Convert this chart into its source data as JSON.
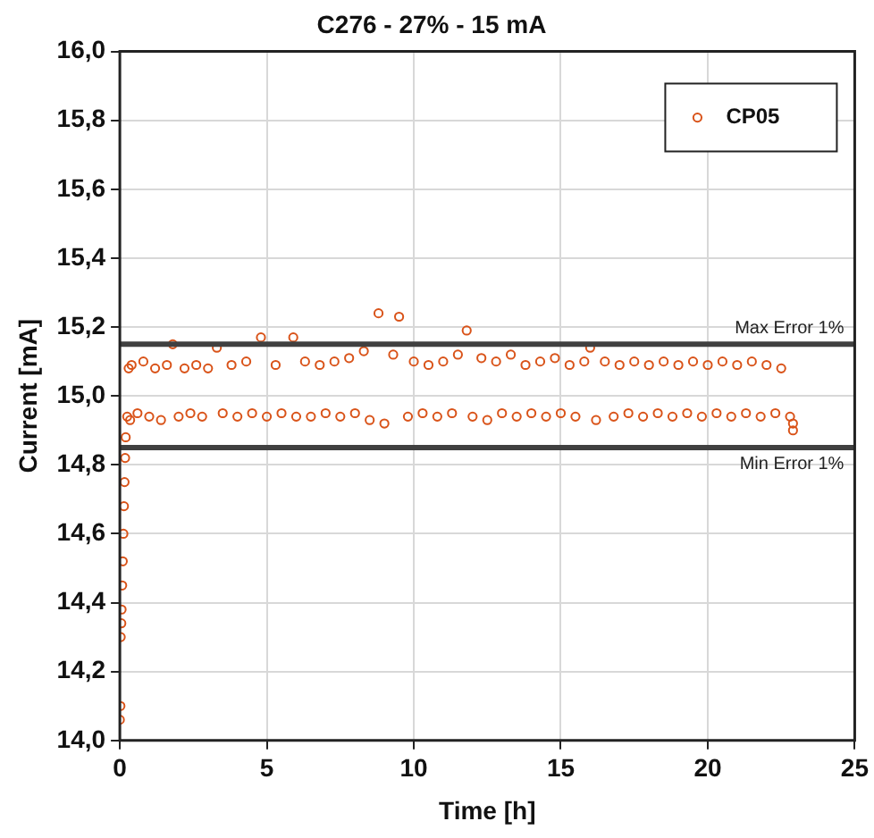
{
  "chart_data": {
    "type": "scatter",
    "title": "C276 - 27% - 15 mA",
    "xlabel": "Time [h]",
    "ylabel": "Current [mA]",
    "xlim": [
      0,
      25
    ],
    "xticks": [
      0,
      5,
      10,
      15,
      20,
      25
    ],
    "ylim": [
      14,
      16
    ],
    "yticks": [
      {
        "value": 14,
        "label": "14,0"
      },
      {
        "value": 14.2,
        "label": "14,2"
      },
      {
        "value": 14.4,
        "label": "14,4"
      },
      {
        "value": 14.6,
        "label": "14,6"
      },
      {
        "value": 14.8,
        "label": "14,8"
      },
      {
        "value": 15,
        "label": "15,0"
      },
      {
        "value": 15.2,
        "label": "15,2"
      },
      {
        "value": 15.4,
        "label": "15,4"
      },
      {
        "value": 15.6,
        "label": "15,6"
      },
      {
        "value": 15.8,
        "label": "15,8"
      },
      {
        "value": 16,
        "label": "16,0"
      }
    ],
    "grid": true,
    "legend": "top right",
    "marker": "circle",
    "ref_lines": [
      {
        "axis": "y",
        "value": 15.15,
        "label": "Max Error 1%",
        "color": "#404040"
      },
      {
        "axis": "y",
        "value": 14.85,
        "label": "Min Error 1%",
        "color": "#404040"
      }
    ],
    "series": [
      {
        "name": "CP05",
        "color": "#d95319",
        "x": [
          0,
          0.02,
          0.03,
          0.05,
          0.06,
          0.08,
          0.1,
          0.12,
          0.14,
          0.16,
          0.18,
          0.2,
          0.25,
          0.3,
          0.35,
          0.4,
          0.6,
          0.8,
          1,
          1.2,
          1.4,
          1.6,
          1.8,
          2,
          2.2,
          2.4,
          2.6,
          2.8,
          3,
          3.3,
          3.5,
          3.8,
          4,
          4.3,
          4.5,
          4.8,
          5,
          5.3,
          5.5,
          5.9,
          6,
          6.3,
          6.5,
          6.8,
          7,
          7.3,
          7.5,
          7.8,
          8,
          8.3,
          8.5,
          8.8,
          9,
          9.3,
          9.5,
          9.8,
          10,
          10.3,
          10.5,
          10.8,
          11,
          11.3,
          11.5,
          11.8,
          12,
          12.3,
          12.5,
          12.8,
          13,
          13.3,
          13.5,
          13.8,
          14,
          14.3,
          14.5,
          14.8,
          15,
          15.3,
          15.5,
          15.8,
          16,
          16.2,
          16.5,
          16.8,
          17,
          17.3,
          17.5,
          17.8,
          18,
          18.3,
          18.5,
          18.8,
          19,
          19.3,
          19.5,
          19.8,
          20,
          20.3,
          20.5,
          20.8,
          21,
          21.3,
          21.5,
          21.8,
          22,
          22.3,
          22.5,
          22.8,
          22.9,
          22.9
        ],
        "values": [
          14.06,
          14.1,
          14.3,
          14.34,
          14.38,
          14.45,
          14.52,
          14.6,
          14.68,
          14.75,
          14.82,
          14.88,
          14.94,
          15.08,
          14.93,
          15.09,
          14.95,
          15.1,
          14.94,
          15.08,
          14.93,
          15.09,
          15.15,
          14.94,
          15.08,
          14.95,
          15.09,
          14.94,
          15.08,
          15.14,
          14.95,
          15.09,
          14.94,
          15.1,
          14.95,
          15.17,
          14.94,
          15.09,
          14.95,
          15.17,
          14.94,
          15.1,
          14.94,
          15.09,
          14.95,
          15.1,
          14.94,
          15.11,
          14.95,
          15.13,
          14.93,
          15.24,
          14.92,
          15.12,
          15.23,
          14.94,
          15.1,
          14.95,
          15.09,
          14.94,
          15.1,
          14.95,
          15.12,
          15.19,
          14.94,
          15.11,
          14.93,
          15.1,
          14.95,
          15.12,
          14.94,
          15.09,
          14.95,
          15.1,
          14.94,
          15.11,
          14.95,
          15.09,
          14.94,
          15.1,
          15.14,
          14.93,
          15.1,
          14.94,
          15.09,
          14.95,
          15.1,
          14.94,
          15.09,
          14.95,
          15.1,
          14.94,
          15.09,
          14.95,
          15.1,
          14.94,
          15.09,
          14.95,
          15.1,
          14.94,
          15.09,
          14.95,
          15.1,
          14.94,
          15.09,
          14.95,
          15.08,
          14.94,
          14.92,
          14.9
        ]
      }
    ]
  }
}
